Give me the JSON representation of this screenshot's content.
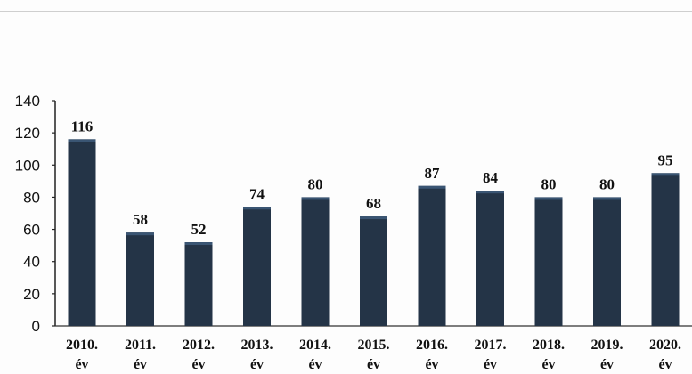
{
  "chart_data": {
    "type": "bar",
    "categories": [
      [
        "2010.",
        "év"
      ],
      [
        "2011.",
        "év"
      ],
      [
        "2012.",
        "év"
      ],
      [
        "2013.",
        "év"
      ],
      [
        "2014.",
        "év"
      ],
      [
        "2015.",
        "év"
      ],
      [
        "2016.",
        "év"
      ],
      [
        "2017.",
        "év"
      ],
      [
        "2018.",
        "év"
      ],
      [
        "2019.",
        "év"
      ],
      [
        "2020.",
        "év"
      ]
    ],
    "values": [
      116,
      58,
      52,
      74,
      80,
      68,
      87,
      84,
      80,
      80,
      95
    ],
    "ylim": [
      0,
      140
    ],
    "yticks": [
      0,
      20,
      40,
      60,
      80,
      100,
      120,
      140
    ],
    "grid": false,
    "legend": "none",
    "bar_color": "#243447",
    "bar_highlight": "#3a5573"
  }
}
